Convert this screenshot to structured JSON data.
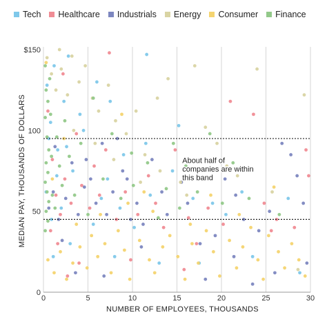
{
  "chart_data": {
    "type": "scatter",
    "xlabel": "NUMBER OF EMPLOYEES, THOUSANDS",
    "ylabel": "MEDIAN PAY, THOUSANDS OF DOLLARS",
    "xlim": [
      0,
      30
    ],
    "ylim": [
      0,
      150
    ],
    "x_ticks": [
      0,
      5,
      10,
      15,
      20,
      25,
      30
    ],
    "x_tick_labels": [
      "0",
      "5",
      "10",
      "15",
      "20",
      "25",
      "30"
    ],
    "y_ticks": [
      0,
      50,
      100,
      150
    ],
    "y_tick_labels": [
      "0",
      "50",
      "100",
      "$150"
    ],
    "grid": "vertical",
    "legend_position": "top",
    "reference_lines": [
      {
        "y": 95,
        "style": "dotted"
      },
      {
        "y": 45,
        "style": "dotted"
      }
    ],
    "annotation": {
      "text_lines": [
        "About half of",
        "companies are within",
        "this band"
      ],
      "x": 15.6,
      "y": 80
    },
    "series": [
      {
        "name": "Tech",
        "color": "#7fc8ea",
        "points": [
          [
            0.4,
            128
          ],
          [
            0.8,
            105
          ],
          [
            1.2,
            140
          ],
          [
            1.6,
            88
          ],
          [
            2.3,
            118
          ],
          [
            0.3,
            62
          ],
          [
            0.9,
            45
          ],
          [
            1.5,
            72
          ],
          [
            2.6,
            90
          ],
          [
            3.3,
            75
          ],
          [
            4.1,
            110
          ],
          [
            2.0,
            52
          ],
          [
            5.6,
            42
          ],
          [
            6.5,
            58
          ],
          [
            7.2,
            70
          ],
          [
            7.5,
            118
          ],
          [
            8.6,
            52
          ],
          [
            9.0,
            85
          ],
          [
            10.2,
            40
          ],
          [
            11.5,
            92
          ],
          [
            12.0,
            60
          ],
          [
            14.5,
            75
          ],
          [
            15.2,
            103
          ],
          [
            16.8,
            58
          ],
          [
            19.0,
            55
          ],
          [
            20.5,
            48
          ],
          [
            22.3,
            62
          ],
          [
            27.5,
            58
          ],
          [
            28.8,
            12
          ],
          [
            11.6,
            147
          ],
          [
            3.0,
            30
          ],
          [
            1.1,
            22
          ],
          [
            6.0,
            130
          ],
          [
            4.5,
            100
          ],
          [
            8.0,
            22
          ],
          [
            13.0,
            18
          ],
          [
            17.5,
            18
          ],
          [
            23.5,
            22
          ],
          [
            0.6,
            95
          ],
          [
            2.8,
            146
          ]
        ]
      },
      {
        "name": "Healthcare",
        "color": "#f08c95",
        "points": [
          [
            0.5,
            112
          ],
          [
            1.0,
            82
          ],
          [
            1.4,
            60
          ],
          [
            1.9,
            48
          ],
          [
            2.4,
            70
          ],
          [
            3.1,
            55
          ],
          [
            3.7,
            98
          ],
          [
            4.3,
            66
          ],
          [
            0.8,
            38
          ],
          [
            1.6,
            30
          ],
          [
            2.2,
            135
          ],
          [
            5.2,
            52
          ],
          [
            5.7,
            78
          ],
          [
            6.3,
            60
          ],
          [
            7.0,
            88
          ],
          [
            7.4,
            148
          ],
          [
            8.2,
            45
          ],
          [
            9.2,
            62
          ],
          [
            10.6,
            48
          ],
          [
            11.8,
            72
          ],
          [
            12.6,
            55
          ],
          [
            13.5,
            40
          ],
          [
            14.8,
            88
          ],
          [
            16.3,
            46
          ],
          [
            17.2,
            30
          ],
          [
            18.5,
            52
          ],
          [
            20.2,
            42
          ],
          [
            21.0,
            118
          ],
          [
            23.6,
            110
          ],
          [
            24.8,
            55
          ],
          [
            25.6,
            38
          ],
          [
            26.2,
            45
          ],
          [
            28.2,
            40
          ],
          [
            29.5,
            88
          ],
          [
            29.8,
            72
          ],
          [
            2.7,
            10
          ],
          [
            4.0,
            18
          ],
          [
            9.8,
            20
          ],
          [
            15.8,
            14
          ]
        ]
      },
      {
        "name": "Industrials",
        "color": "#7d87c0",
        "points": [
          [
            0.6,
            52
          ],
          [
            1.1,
            62
          ],
          [
            1.7,
            45
          ],
          [
            2.5,
            58
          ],
          [
            3.2,
            80
          ],
          [
            3.9,
            48
          ],
          [
            4.6,
            65
          ],
          [
            5.3,
            70
          ],
          [
            5.9,
            55
          ],
          [
            6.6,
            92
          ],
          [
            7.1,
            48
          ],
          [
            7.8,
            62
          ],
          [
            8.3,
            95
          ],
          [
            9.4,
            70
          ],
          [
            9.8,
            45
          ],
          [
            10.5,
            55
          ],
          [
            11.2,
            42
          ],
          [
            12.2,
            82
          ],
          [
            13.3,
            62
          ],
          [
            13.9,
            48
          ],
          [
            15.5,
            68
          ],
          [
            16.2,
            55
          ],
          [
            17.6,
            30
          ],
          [
            19.3,
            35
          ],
          [
            20.4,
            70
          ],
          [
            21.6,
            60
          ],
          [
            22.5,
            45
          ],
          [
            24.2,
            38
          ],
          [
            25.4,
            50
          ],
          [
            26.8,
            92
          ],
          [
            27.8,
            85
          ],
          [
            28.5,
            72
          ],
          [
            29.2,
            55
          ],
          [
            2.1,
            32
          ],
          [
            3.6,
            12
          ],
          [
            6.8,
            10
          ],
          [
            11.0,
            28
          ],
          [
            18.2,
            8
          ],
          [
            21.4,
            22
          ],
          [
            23.5,
            5
          ],
          [
            26.0,
            12
          ],
          [
            29.6,
            18
          ],
          [
            1.3,
            90
          ],
          [
            4.8,
            82
          ],
          [
            8.9,
            75
          ]
        ]
      },
      {
        "name": "Energy",
        "color": "#d9d4a3",
        "points": [
          [
            0.4,
            145
          ],
          [
            0.9,
            135
          ],
          [
            1.4,
            125
          ],
          [
            2.0,
            138
          ],
          [
            2.7,
            122
          ],
          [
            3.2,
            146
          ],
          [
            4.0,
            130
          ],
          [
            4.7,
            140
          ],
          [
            5.5,
            120
          ],
          [
            6.2,
            112
          ],
          [
            7.3,
            128
          ],
          [
            8.1,
            106
          ],
          [
            9.3,
            98
          ],
          [
            10.4,
            112
          ],
          [
            11.4,
            85
          ],
          [
            12.8,
            120
          ],
          [
            14.0,
            132
          ],
          [
            15.4,
            68
          ],
          [
            16.1,
            60
          ],
          [
            17.0,
            140
          ],
          [
            18.2,
            102
          ],
          [
            19.5,
            92
          ],
          [
            20.6,
            78
          ],
          [
            21.8,
            72
          ],
          [
            24.0,
            138
          ],
          [
            25.7,
            62
          ],
          [
            28.6,
            14
          ],
          [
            29.3,
            122
          ],
          [
            1.8,
            150
          ],
          [
            3.4,
            100
          ],
          [
            5.8,
            92
          ],
          [
            7.9,
            82
          ],
          [
            10.9,
            68
          ],
          [
            13.1,
            75
          ]
        ]
      },
      {
        "name": "Consumer",
        "color": "#f4d470",
        "points": [
          [
            0.5,
            20
          ],
          [
            1.2,
            12
          ],
          [
            1.9,
            25
          ],
          [
            2.6,
            8
          ],
          [
            3.3,
            18
          ],
          [
            4.1,
            28
          ],
          [
            4.9,
            15
          ],
          [
            5.4,
            35
          ],
          [
            6.1,
            22
          ],
          [
            6.9,
            30
          ],
          [
            7.6,
            12
          ],
          [
            8.4,
            38
          ],
          [
            9.1,
            26
          ],
          [
            9.7,
            8
          ],
          [
            10.8,
            32
          ],
          [
            11.9,
            20
          ],
          [
            12.5,
            12
          ],
          [
            13.4,
            28
          ],
          [
            14.2,
            35
          ],
          [
            15.1,
            22
          ],
          [
            15.9,
            8
          ],
          [
            16.7,
            30
          ],
          [
            17.4,
            18
          ],
          [
            18.3,
            38
          ],
          [
            19.1,
            25
          ],
          [
            19.8,
            10
          ],
          [
            20.9,
            32
          ],
          [
            21.7,
            15
          ],
          [
            22.4,
            28
          ],
          [
            23.3,
            40
          ],
          [
            24.1,
            20
          ],
          [
            24.7,
            8
          ],
          [
            25.3,
            35
          ],
          [
            26.4,
            25
          ],
          [
            27.1,
            15
          ],
          [
            27.9,
            30
          ],
          [
            28.7,
            20
          ],
          [
            29.4,
            10
          ],
          [
            3.7,
            42
          ],
          [
            6.4,
            48
          ],
          [
            9.5,
            55
          ],
          [
            12.3,
            50
          ],
          [
            16.5,
            42
          ],
          [
            18.8,
            60
          ],
          [
            22.0,
            48
          ],
          [
            25.9,
            65
          ],
          [
            1.0,
            70
          ],
          [
            2.3,
            95
          ],
          [
            0.3,
            142
          ],
          [
            8.8,
            110
          ],
          [
            11.3,
            62
          ]
        ]
      },
      {
        "name": "Finance",
        "color": "#93c98a",
        "points": [
          [
            0.2,
            140
          ],
          [
            0.3,
            125
          ],
          [
            0.5,
            118
          ],
          [
            0.2,
            108
          ],
          [
            0.4,
            96
          ],
          [
            0.6,
            88
          ],
          [
            0.3,
            80
          ],
          [
            0.5,
            74
          ],
          [
            0.2,
            68
          ],
          [
            0.4,
            62
          ],
          [
            0.6,
            56
          ],
          [
            0.3,
            50
          ],
          [
            0.5,
            44
          ],
          [
            0.2,
            38
          ],
          [
            0.7,
            132
          ],
          [
            0.8,
            110
          ],
          [
            0.9,
            84
          ],
          [
            1.0,
            60
          ],
          [
            1.3,
            52
          ],
          [
            1.5,
            96
          ],
          [
            1.8,
            78
          ],
          [
            2.1,
            66
          ],
          [
            2.4,
            106
          ],
          [
            2.9,
            84
          ],
          [
            3.5,
            60
          ],
          [
            4.2,
            92
          ],
          [
            5.0,
            48
          ],
          [
            5.6,
            120
          ],
          [
            6.7,
            70
          ],
          [
            7.7,
            98
          ],
          [
            8.7,
            58
          ],
          [
            10.1,
            66
          ],
          [
            11.7,
            80
          ],
          [
            12.9,
            46
          ],
          [
            13.8,
            64
          ],
          [
            15.3,
            52
          ],
          [
            16.0,
            78
          ],
          [
            17.3,
            62
          ],
          [
            18.7,
            98
          ],
          [
            20.1,
            55
          ],
          [
            21.3,
            80
          ],
          [
            23.1,
            58
          ],
          [
            26.5,
            48
          ],
          [
            9.9,
            86
          ],
          [
            14.6,
            92
          ]
        ]
      }
    ]
  }
}
